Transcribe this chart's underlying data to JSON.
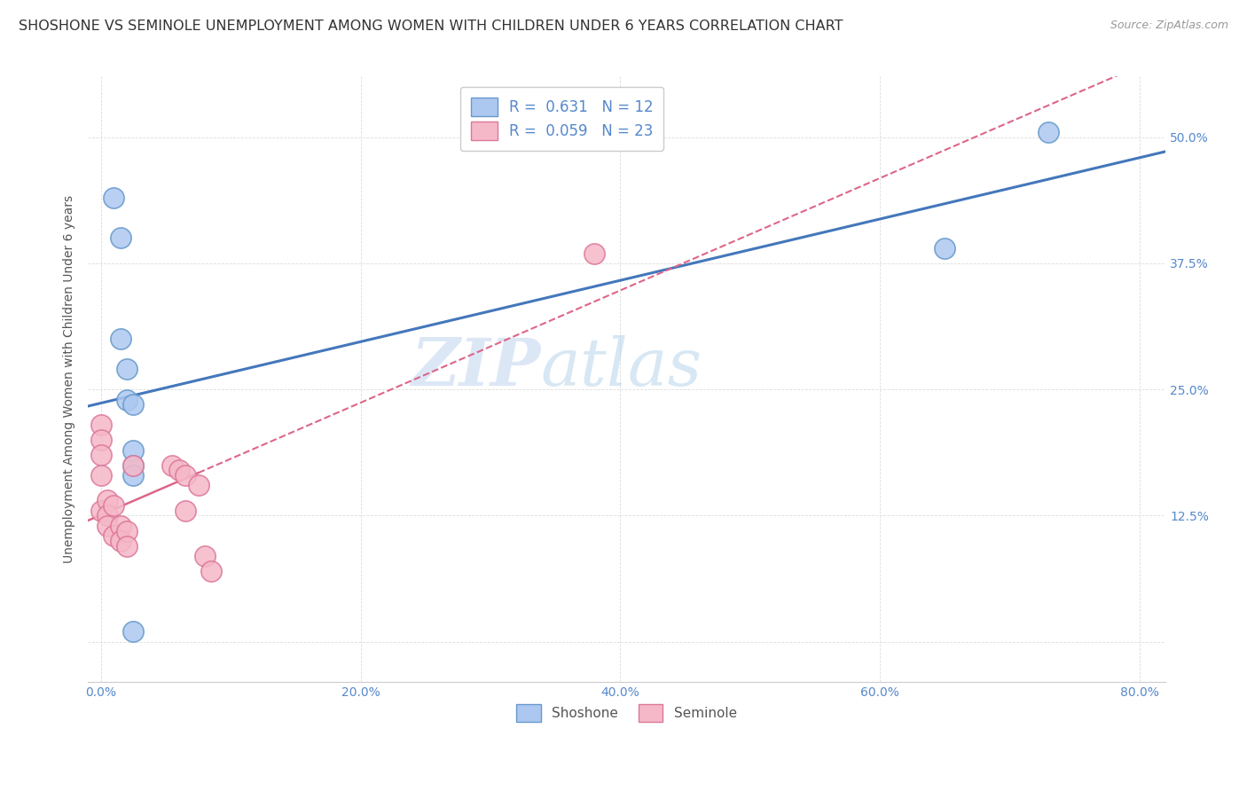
{
  "title": "SHOSHONE VS SEMINOLE UNEMPLOYMENT AMONG WOMEN WITH CHILDREN UNDER 6 YEARS CORRELATION CHART",
  "source": "Source: ZipAtlas.com",
  "ylabel": "Unemployment Among Women with Children Under 6 years",
  "xlabel_ticks": [
    "0.0%",
    "20.0%",
    "40.0%",
    "60.0%",
    "80.0%"
  ],
  "ylabel_ticks": [
    "50.0%",
    "37.5%",
    "25.0%",
    "12.5%",
    ""
  ],
  "ylabel_ticks_vals": [
    0.5,
    0.375,
    0.25,
    0.125,
    0.0
  ],
  "xlim": [
    -0.01,
    0.82
  ],
  "ylim": [
    -0.04,
    0.56
  ],
  "x_tick_vals": [
    0.0,
    0.2,
    0.4,
    0.6,
    0.8
  ],
  "legend_label1": "R =  0.631   N = 12",
  "legend_label2": "R =  0.059   N = 23",
  "legend_bottom_label1": "Shoshone",
  "legend_bottom_label2": "Seminole",
  "shoshone_fill_color": "#adc8f0",
  "seminole_fill_color": "#f5b8c8",
  "shoshone_edge_color": "#6699cc",
  "seminole_edge_color": "#dd7799",
  "shoshone_line_color": "#4477bb",
  "seminole_line_color": "#dd6688",
  "watermark_zip": "ZIP",
  "watermark_atlas": "atlas",
  "shoshone_x": [
    0.01,
    0.015,
    0.015,
    0.02,
    0.02,
    0.025,
    0.025,
    0.025,
    0.025,
    0.025,
    0.65,
    0.73
  ],
  "shoshone_y": [
    0.44,
    0.4,
    0.3,
    0.27,
    0.24,
    0.235,
    0.19,
    0.175,
    0.165,
    0.01,
    0.39,
    0.505
  ],
  "seminole_x": [
    0.0,
    0.0,
    0.0,
    0.0,
    0.0,
    0.005,
    0.005,
    0.005,
    0.01,
    0.01,
    0.015,
    0.015,
    0.02,
    0.02,
    0.025,
    0.055,
    0.06,
    0.065,
    0.065,
    0.075,
    0.08,
    0.085,
    0.38
  ],
  "seminole_y": [
    0.215,
    0.2,
    0.185,
    0.165,
    0.13,
    0.14,
    0.125,
    0.115,
    0.135,
    0.105,
    0.115,
    0.1,
    0.11,
    0.095,
    0.175,
    0.175,
    0.17,
    0.165,
    0.13,
    0.155,
    0.085,
    0.07,
    0.385
  ],
  "background_color": "#ffffff",
  "grid_color": "#dddddd",
  "title_fontsize": 11.5,
  "axis_label_fontsize": 10,
  "tick_fontsize": 10,
  "marker_size": 280,
  "tick_color": "#5588cc"
}
